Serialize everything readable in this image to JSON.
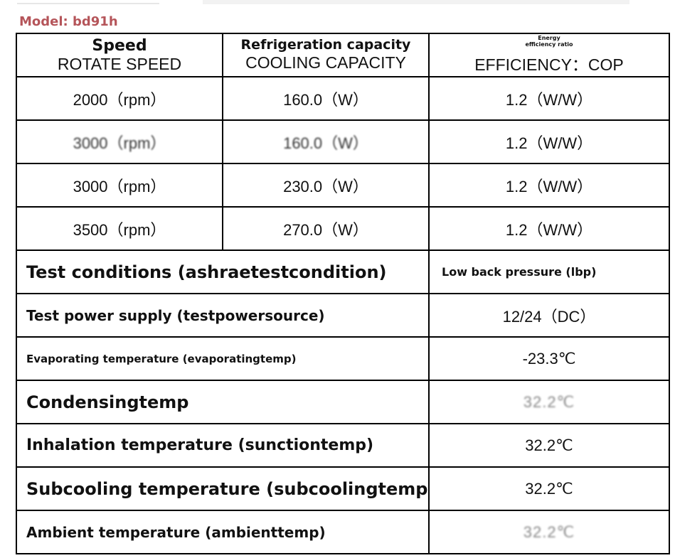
{
  "model_label": "Model: bd91h",
  "headers": {
    "speed": {
      "label": "Speed",
      "sub": "ROTATE SPEED"
    },
    "capacity": {
      "label": "Refrigeration capacity",
      "sub": "COOLING CAPACITY"
    },
    "efficiency": {
      "label_line1": "Energy",
      "label_line2": "efficiency ratio",
      "sub": "EFFICIENCY：COP"
    }
  },
  "performance_rows": [
    {
      "speed": "2000（rpm）",
      "capacity": "160.0（W）",
      "cop": "1.2（W/W）"
    },
    {
      "speed": "3000（rpm）",
      "capacity": "160.0（W）",
      "cop": "1.2（W/W）"
    },
    {
      "speed": "3000（rpm）",
      "capacity": "230.0（W）",
      "cop": "1.2（W/W）"
    },
    {
      "speed": "3500（rpm）",
      "capacity": "270.0（W）",
      "cop": "1.2（W/W）"
    }
  ],
  "conditions": [
    {
      "label": "Test conditions (ashraetestcondition)",
      "value": "Low back pressure (lbp)"
    },
    {
      "label": "Test power supply (testpowersource)",
      "value": "12/24（DC）"
    },
    {
      "label": "Evaporating temperature (evaporatingtemp)",
      "value": "-23.3℃"
    },
    {
      "label": "Condensingtemp",
      "value": "32.2℃"
    },
    {
      "label": "Inhalation temperature (sunctiontemp)",
      "value": "32.2℃"
    },
    {
      "label": "Subcooling temperature (subcoolingtemp)",
      "value": "32.2℃"
    },
    {
      "label": "Ambient temperature (ambienttemp)",
      "value": "32.2℃"
    }
  ]
}
